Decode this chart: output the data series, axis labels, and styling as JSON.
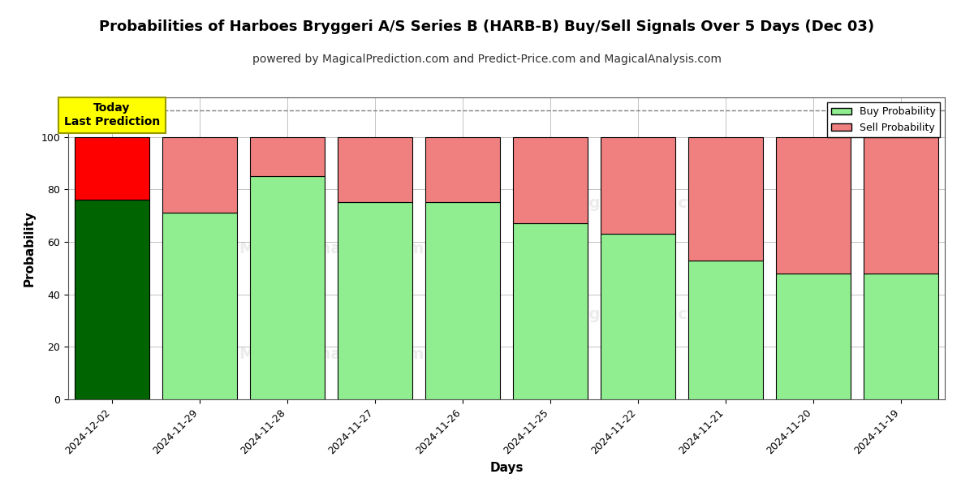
{
  "title": "Probabilities of Harboes Bryggeri A/S Series B (HARB-B) Buy/Sell Signals Over 5 Days (Dec 03)",
  "subtitle": "powered by MagicalPrediction.com and Predict-Price.com and MagicalAnalysis.com",
  "xlabel": "Days",
  "ylabel": "Probability",
  "categories": [
    "2024-12-02",
    "2024-11-29",
    "2024-11-28",
    "2024-11-27",
    "2024-11-26",
    "2024-11-25",
    "2024-11-22",
    "2024-11-21",
    "2024-11-20",
    "2024-11-19"
  ],
  "buy_values": [
    76,
    71,
    85,
    75,
    75,
    67,
    63,
    53,
    48,
    48
  ],
  "sell_values": [
    24,
    29,
    15,
    25,
    25,
    33,
    37,
    47,
    52,
    52
  ],
  "buy_colors": [
    "#006400",
    "#90EE90",
    "#90EE90",
    "#90EE90",
    "#90EE90",
    "#90EE90",
    "#90EE90",
    "#90EE90",
    "#90EE90",
    "#90EE90"
  ],
  "sell_colors": [
    "#FF0000",
    "#F08080",
    "#F08080",
    "#F08080",
    "#F08080",
    "#F08080",
    "#F08080",
    "#F08080",
    "#F08080",
    "#F08080"
  ],
  "today_label": "Today\nLast Prediction",
  "today_bg": "#FFFF00",
  "dashed_line_y": 110,
  "ylim": [
    0,
    115
  ],
  "yticks": [
    0,
    20,
    40,
    60,
    80,
    100
  ],
  "legend_buy_color": "#90EE90",
  "legend_sell_color": "#F08080",
  "buy_label": "Buy Probability",
  "sell_label": "Sell Probability",
  "bar_width": 0.85,
  "title_fontsize": 13,
  "subtitle_fontsize": 10,
  "axis_label_fontsize": 11,
  "tick_fontsize": 9,
  "grid_color": "#aaaaaa",
  "bg_color": "#ffffff",
  "edge_color": "#000000"
}
